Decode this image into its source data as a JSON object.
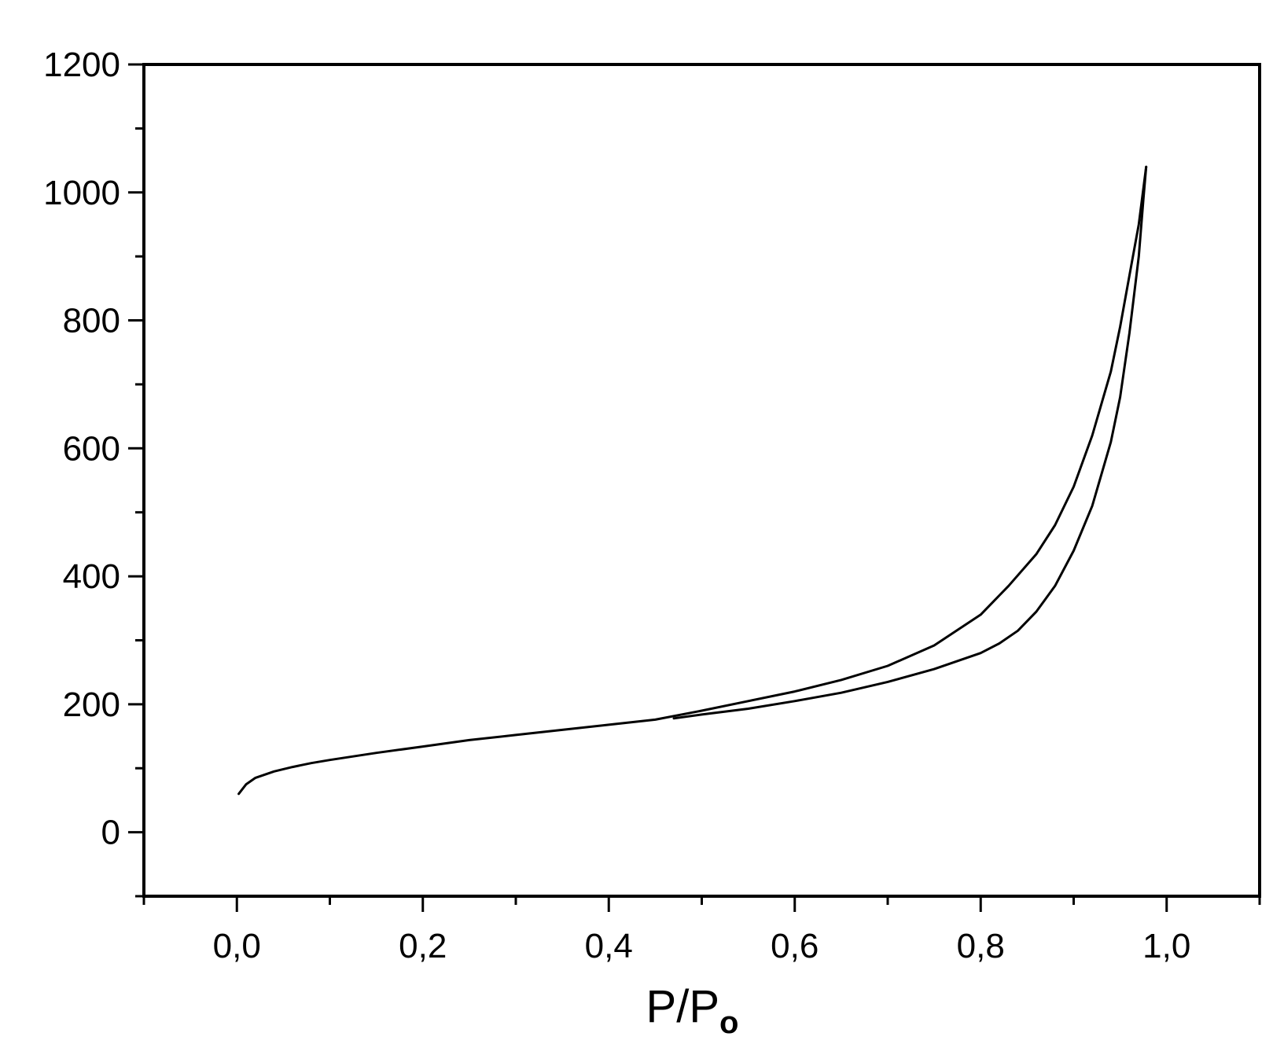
{
  "chart_data": {
    "type": "line",
    "title": "",
    "xlabel": "P/Po",
    "xlabel_main": "P/P",
    "xlabel_subscript": "o",
    "ylabel": "",
    "xlim": [
      -0.1,
      1.1
    ],
    "ylim": [
      -100,
      1200
    ],
    "xticks": [
      0.0,
      0.2,
      0.4,
      0.6,
      0.8,
      1.0
    ],
    "xtick_labels": [
      "0,0",
      "0,2",
      "0,4",
      "0,6",
      "0,8",
      "1,0"
    ],
    "yticks": [
      0,
      200,
      400,
      600,
      800,
      1000,
      1200
    ],
    "ytick_labels": [
      "0",
      "200",
      "400",
      "600",
      "800",
      "1000",
      "1200"
    ],
    "grid": false,
    "legend": false,
    "line_color": "#000000",
    "series": [
      {
        "x": [
          0.002,
          0.01,
          0.02,
          0.04,
          0.06,
          0.08,
          0.1,
          0.15,
          0.2,
          0.25,
          0.3,
          0.35,
          0.4,
          0.45,
          0.5,
          0.55,
          0.6,
          0.65,
          0.7,
          0.75,
          0.8,
          0.83,
          0.86,
          0.88,
          0.9,
          0.92,
          0.94,
          0.95,
          0.96,
          0.97,
          0.978
        ],
        "values": [
          60,
          75,
          85,
          95,
          102,
          108,
          113,
          124,
          134,
          144,
          152,
          160,
          168,
          176,
          190,
          205,
          220,
          238,
          260,
          292,
          340,
          385,
          435,
          480,
          540,
          620,
          720,
          790,
          870,
          950,
          1040
        ]
      },
      {
        "x": [
          0.978,
          0.975,
          0.97,
          0.96,
          0.95,
          0.94,
          0.92,
          0.9,
          0.88,
          0.86,
          0.84,
          0.82,
          0.8,
          0.75,
          0.7,
          0.65,
          0.6,
          0.55,
          0.5,
          0.47
        ],
        "values": [
          1040,
          990,
          900,
          780,
          680,
          610,
          510,
          440,
          385,
          345,
          315,
          295,
          280,
          255,
          235,
          218,
          205,
          193,
          184,
          178
        ]
      }
    ]
  }
}
